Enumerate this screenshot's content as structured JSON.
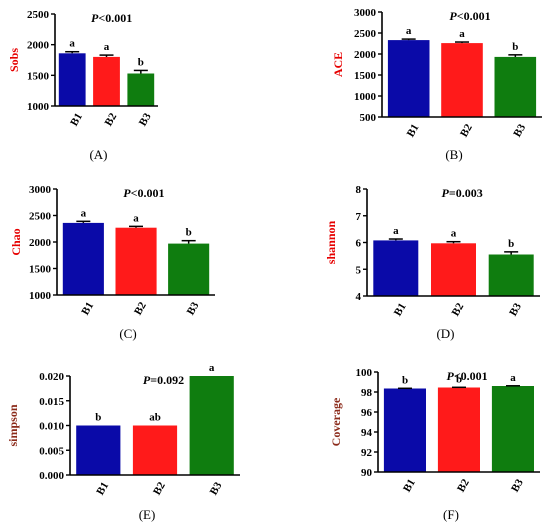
{
  "chart_data": [
    {
      "type": "bar",
      "panel_label": "(A)",
      "title": "P<0.001",
      "ylabel": "Sobs",
      "categories": [
        "B1",
        "B2",
        "B3"
      ],
      "values": [
        1860,
        1800,
        1530
      ],
      "errors": [
        25,
        30,
        50
      ],
      "letters": [
        "a",
        "a",
        "b"
      ],
      "ylim": [
        1000,
        2500
      ],
      "yticks": [
        1000,
        1500,
        2000,
        2500
      ],
      "ytick_labels": [
        "1000",
        "1500",
        "2000",
        "2500"
      ]
    },
    {
      "type": "bar",
      "panel_label": "(B)",
      "title": "P<0.001",
      "ylabel": "ACE",
      "categories": [
        "B1",
        "B2",
        "B3"
      ],
      "values": [
        2330,
        2260,
        1930
      ],
      "errors": [
        25,
        25,
        50
      ],
      "letters": [
        "a",
        "a",
        "b"
      ],
      "ylim": [
        500,
        3000
      ],
      "yticks": [
        500,
        1000,
        1500,
        2000,
        2500,
        3000
      ],
      "ytick_labels": [
        "500",
        "1000",
        "1500",
        "2000",
        "2500",
        "3000"
      ]
    },
    {
      "type": "bar",
      "panel_label": "(C)",
      "title": "P<0.001",
      "ylabel": "Chao",
      "categories": [
        "B1",
        "B2",
        "B3"
      ],
      "values": [
        2360,
        2270,
        1970
      ],
      "errors": [
        30,
        25,
        55
      ],
      "letters": [
        "a",
        "a",
        "b"
      ],
      "ylim": [
        1000,
        3000
      ],
      "yticks": [
        1000,
        1500,
        2000,
        2500,
        3000
      ],
      "ytick_labels": [
        "1000",
        "1500",
        "2000",
        "2500",
        "3000"
      ]
    },
    {
      "type": "bar",
      "panel_label": "(D)",
      "title": "P=0.003",
      "ylabel": "shannon",
      "categories": [
        "B1",
        "B2",
        "B3"
      ],
      "values": [
        6.08,
        5.97,
        5.55
      ],
      "errors": [
        0.05,
        0.06,
        0.1
      ],
      "letters": [
        "a",
        "a",
        "b"
      ],
      "ylim": [
        4,
        8
      ],
      "yticks": [
        4,
        5,
        6,
        7,
        8
      ],
      "ytick_labels": [
        "4",
        "5",
        "6",
        "7",
        "8"
      ]
    },
    {
      "type": "bar",
      "panel_label": "(E)",
      "title": "P=0.092",
      "ylabel": "simpson",
      "categories": [
        "B1",
        "B2",
        "B3"
      ],
      "values": [
        0.01,
        0.01,
        0.02
      ],
      "errors": [
        0,
        0,
        0
      ],
      "letters": [
        "b",
        "ab",
        "a"
      ],
      "ylim": [
        0,
        0.02
      ],
      "yticks": [
        0,
        0.005,
        0.01,
        0.015,
        0.02
      ],
      "ytick_labels": [
        "0.000",
        "0.005",
        "0.010",
        "0.015",
        "0.020"
      ]
    },
    {
      "type": "bar",
      "panel_label": "(F)",
      "title": "P<0.001",
      "ylabel": "Coverage",
      "categories": [
        "B1",
        "B2",
        "B3"
      ],
      "values": [
        98.35,
        98.45,
        98.6
      ],
      "errors": [
        0.02,
        0.02,
        0.02
      ],
      "letters": [
        "b",
        "b",
        "a"
      ],
      "ylim": [
        90,
        100
      ],
      "yticks": [
        90,
        92,
        94,
        96,
        98,
        100
      ],
      "ytick_labels": [
        "90",
        "92",
        "94",
        "96",
        "98",
        "100"
      ]
    }
  ],
  "colors": {
    "bar_colors": [
      "#0a0aa8",
      "#ff1a1a",
      "#0f7d0f"
    ],
    "ylabel_color": "#e60000",
    "ylabel_color_alt": "#8b2a1a",
    "axis": "#000000"
  }
}
